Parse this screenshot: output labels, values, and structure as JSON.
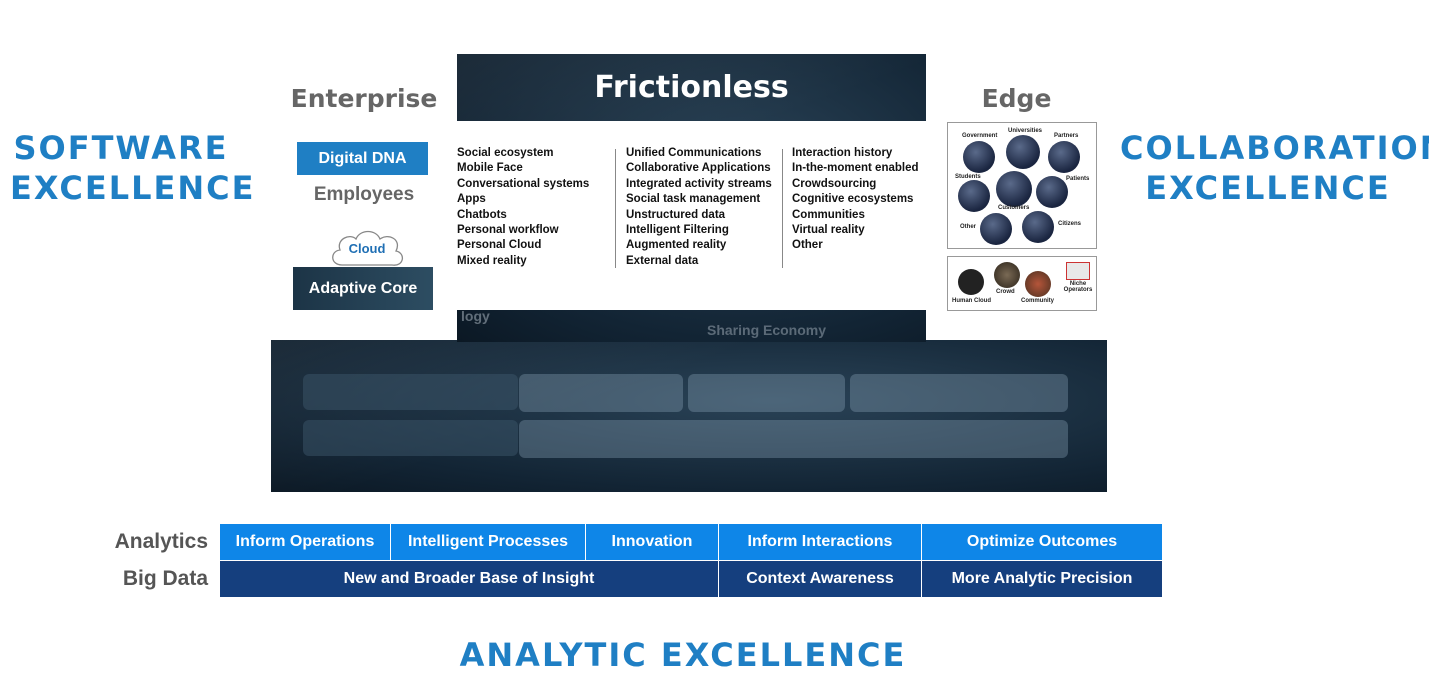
{
  "labels": {
    "software": [
      "SOFTWARE",
      "EXCELLENCE"
    ],
    "collaboration": [
      "COLLABORATION",
      "EXCELLENCE"
    ],
    "analytic": "ANALYTIC EXCELLENCE"
  },
  "enterprise": {
    "title": "Enterprise",
    "digital_dna": "Digital DNA",
    "employees": "Employees",
    "cloud": "Cloud",
    "adaptive_core": "Adaptive Core"
  },
  "frictionless": {
    "title": "Frictionless",
    "col1": [
      "Social ecosystem",
      "Mobile Face",
      "Conversational systems",
      "Apps",
      "Chatbots",
      "Personal workflow",
      "Personal Cloud",
      "Mixed reality"
    ],
    "col2": [
      "Unified Communications",
      "Collaborative Applications",
      "Integrated activity streams",
      "Social task management",
      "Unstructured data",
      "Intelligent Filtering",
      "Augmented reality",
      "External data"
    ],
    "col3": [
      "Interaction history",
      "In-the-moment enabled",
      "Crowdsourcing",
      "Cognitive ecosystems",
      "Communities",
      "Virtual reality",
      "Other"
    ]
  },
  "background_fragments": {
    "logy": "logy",
    "sharing": "Sharing Economy"
  },
  "edge": {
    "title": "Edge",
    "top_labels": [
      "Government",
      "Universities",
      "Partners",
      "Students",
      "Patients",
      "Customers",
      "Other",
      "Citizens"
    ],
    "bottom_labels": [
      "Human Cloud",
      "Crowd",
      "Community",
      "Niche Operators"
    ]
  },
  "analytics": {
    "label": "Analytics",
    "cells": [
      "Inform Operations",
      "Intelligent Processes",
      "Innovation",
      "Inform Interactions",
      "Optimize Outcomes"
    ]
  },
  "bigdata": {
    "label": "Big Data",
    "cells": [
      "New and Broader Base of Insight",
      "Context Awareness",
      "More Analytic Precision"
    ]
  },
  "colors": {
    "accent_blue": "#1f7fc4",
    "analytics_blue": "#0e86e8",
    "bigdata_navy": "#153f7e",
    "dark_panel": "#1b3143"
  }
}
